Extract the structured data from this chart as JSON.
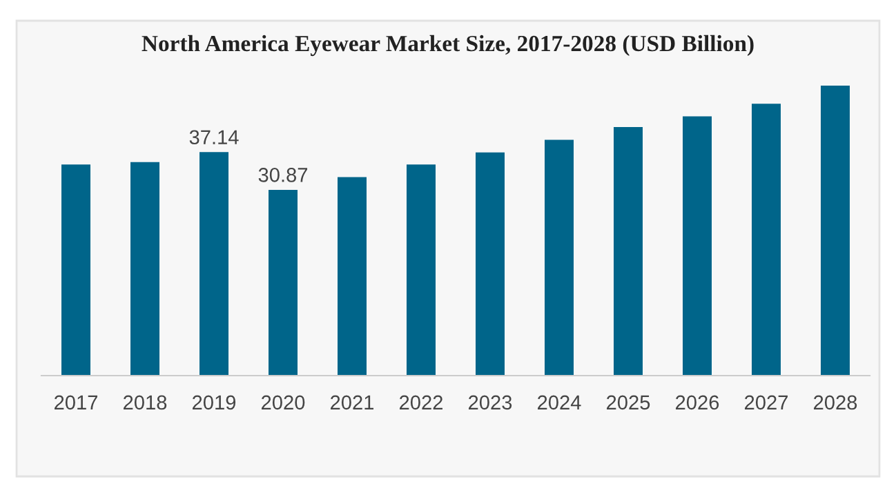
{
  "chart_data": {
    "type": "bar",
    "title": "North America Eyewear Market Size, 2017-2028 (USD Billion)",
    "categories": [
      "2017",
      "2018",
      "2019",
      "2020",
      "2021",
      "2022",
      "2023",
      "2024",
      "2025",
      "2026",
      "2027",
      "2028"
    ],
    "values": [
      35.1,
      35.5,
      37.14,
      30.87,
      33.0,
      35.1,
      37.1,
      39.2,
      41.3,
      43.1,
      45.2,
      48.2
    ],
    "value_labels": [
      null,
      null,
      "37.14",
      "30.87",
      null,
      null,
      null,
      null,
      null,
      null,
      null,
      null
    ],
    "ylim": [
      0,
      48.2
    ],
    "color": "#00658a"
  }
}
